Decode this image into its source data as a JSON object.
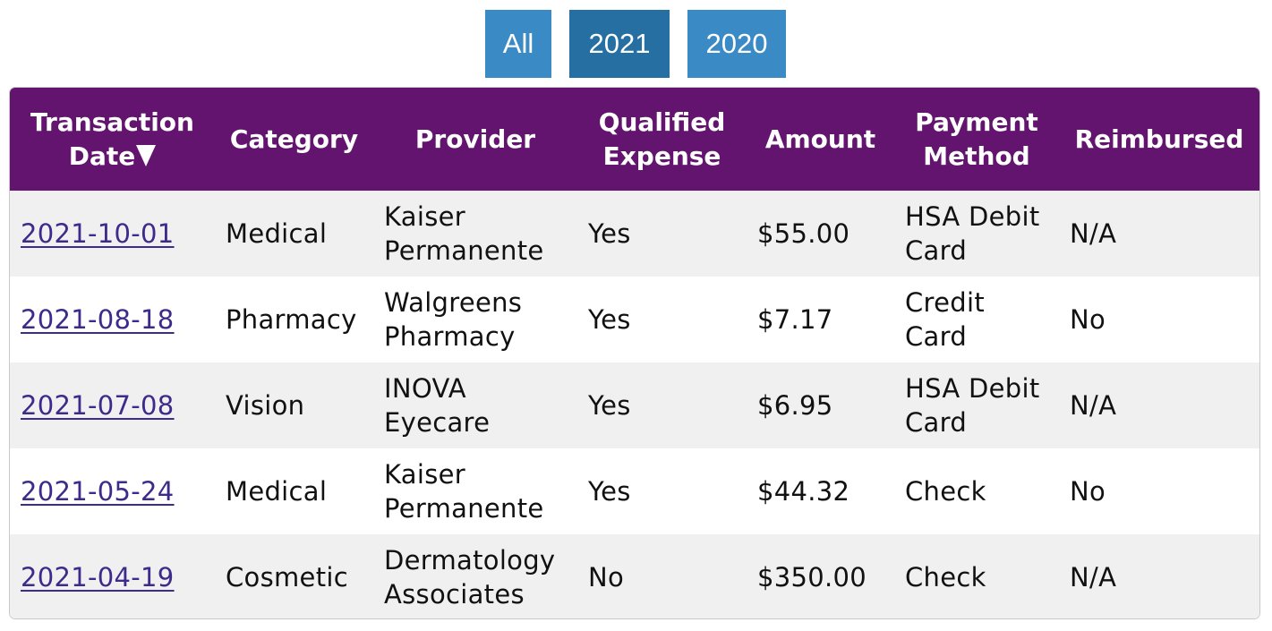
{
  "filters": [
    {
      "label": "All",
      "active": false
    },
    {
      "label": "2021",
      "active": true
    },
    {
      "label": "2020",
      "active": false
    }
  ],
  "table": {
    "headers": {
      "date_line1": "Transaction",
      "date_line2": "Date",
      "category": "Category",
      "provider": "Provider",
      "qualified_line1": "Qualified",
      "qualified_line2": "Expense",
      "amount": "Amount",
      "payment_line1": "Payment",
      "payment_line2": "Method",
      "reimbursed": "Reimbursed"
    },
    "rows": [
      {
        "date": "2021-10-01",
        "category": "Medical",
        "provider_line1": "Kaiser",
        "provider_line2": "Permanente",
        "qualified": "Yes",
        "amount": "$55.00",
        "payment_line1": "HSA Debit",
        "payment_line2": "Card",
        "reimbursed": "N/A"
      },
      {
        "date": "2021-08-18",
        "category": "Pharmacy",
        "provider_line1": "Walgreens",
        "provider_line2": "Pharmacy",
        "qualified": "Yes",
        "amount": "$7.17",
        "payment_line1": "Credit",
        "payment_line2": "Card",
        "reimbursed": "No"
      },
      {
        "date": "2021-07-08",
        "category": "Vision",
        "provider_line1": "INOVA",
        "provider_line2": "Eyecare",
        "qualified": "Yes",
        "amount": "$6.95",
        "payment_line1": "HSA Debit",
        "payment_line2": "Card",
        "reimbursed": "N/A"
      },
      {
        "date": "2021-05-24",
        "category": "Medical",
        "provider_line1": "Kaiser",
        "provider_line2": "Permanente",
        "qualified": "Yes",
        "amount": "$44.32",
        "payment_line1": "Check",
        "payment_line2": "",
        "reimbursed": "No"
      },
      {
        "date": "2021-04-19",
        "category": "Cosmetic",
        "provider_line1": "Dermatology",
        "provider_line2": "Associates",
        "qualified": "No",
        "amount": "$350.00",
        "payment_line1": "Check",
        "payment_line2": "",
        "reimbursed": "N/A"
      }
    ]
  },
  "colors": {
    "header_bg": "#63146e",
    "filter_bg": "#3a8ac6",
    "filter_active_bg": "#256fa3",
    "link": "#3d2a8a",
    "row_stripe": "#f0f0f0"
  },
  "icons": {
    "sort_indicator": "sort-descending-icon"
  }
}
